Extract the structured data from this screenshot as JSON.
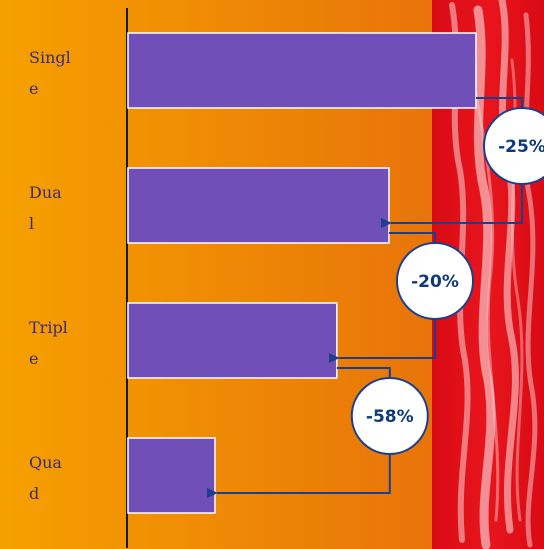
{
  "chart_data": {
    "type": "bar",
    "orientation": "horizontal",
    "categories": [
      "Single",
      "Dual",
      "Triple",
      "Quad"
    ],
    "category_label_lines": [
      [
        "Singl",
        "e"
      ],
      [
        "Dua",
        "l"
      ],
      [
        "Tripl",
        "e"
      ],
      [
        "Qua",
        "d"
      ]
    ],
    "values": [
      100,
      75,
      60,
      25
    ],
    "xlim": [
      0,
      100
    ],
    "changes": [
      {
        "from": 0,
        "to": 1,
        "label": "-25%"
      },
      {
        "from": 1,
        "to": 2,
        "label": "-20%"
      },
      {
        "from": 2,
        "to": 3,
        "label": "-58%"
      }
    ],
    "grid": false,
    "legend": "none",
    "colors": {
      "bar": "#7050b8",
      "bar_stroke": "#ffffff",
      "background_left": "#f6a000",
      "background_right": "#e8740a",
      "red_panel": "#e01018",
      "axis": "#1a1a1a",
      "connector": "#1b3f8f",
      "badge_fill": "#ffffff",
      "badge_stroke": "#1b3f8f",
      "label_text": "#3a2a7a"
    }
  }
}
